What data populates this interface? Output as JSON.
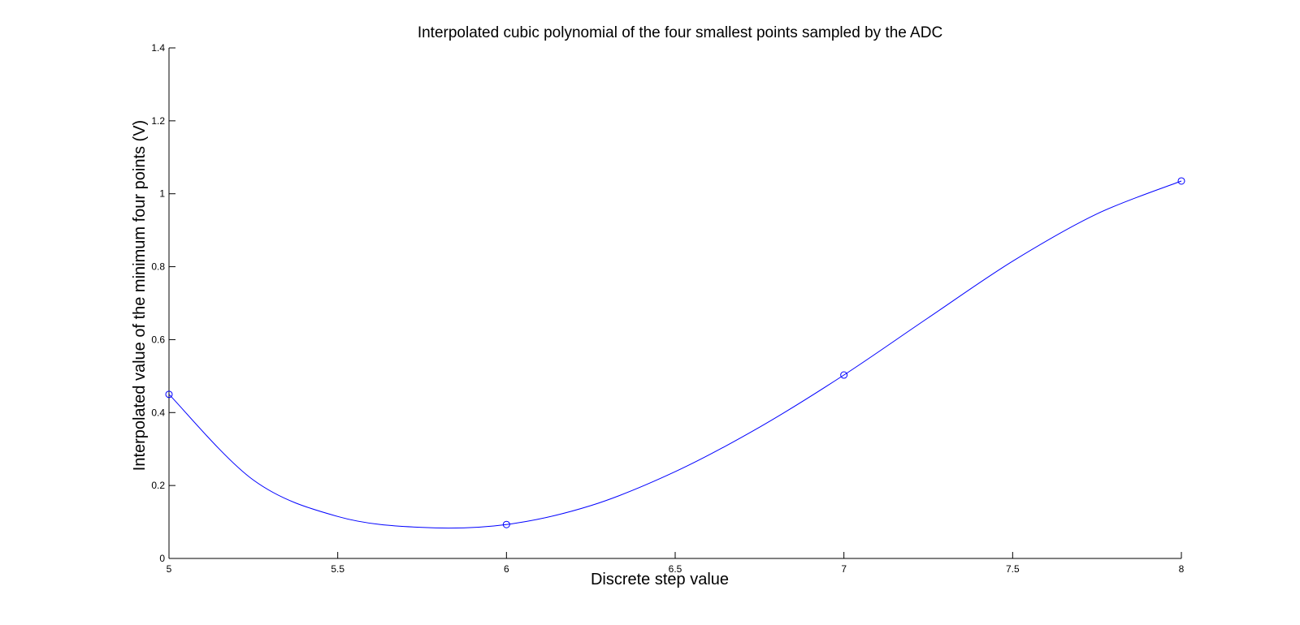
{
  "chart_data": {
    "type": "line",
    "title": "Interpolated cubic polynomial of the four smallest points sampled by the ADC",
    "xlabel": "Discrete step value",
    "ylabel": "Interpolated value of the minimum four points (V)",
    "xlim": [
      5,
      8
    ],
    "ylim": [
      0,
      1.4
    ],
    "xticks": [
      5,
      5.5,
      6,
      6.5,
      7,
      7.5,
      8
    ],
    "xtick_labels": [
      "5",
      "5.5",
      "6",
      "6.5",
      "7",
      "7.5",
      "8"
    ],
    "yticks": [
      0,
      0.2,
      0.4,
      0.6,
      0.8,
      1,
      1.2,
      1.4
    ],
    "ytick_labels": [
      "0",
      "0.2",
      "0.4",
      "0.6",
      "0.8",
      "1",
      "1.2",
      "1.4"
    ],
    "grid": false,
    "series": [
      {
        "style": "curve",
        "color": "#0000ff",
        "x": [
          5,
          5.25,
          5.5,
          5.75,
          6,
          6.25,
          6.5,
          6.75,
          7,
          7.25,
          7.5,
          7.75,
          8
        ],
        "y": [
          0.45,
          0.215,
          0.115,
          0.085,
          0.093,
          0.145,
          0.238,
          0.36,
          0.503,
          0.66,
          0.815,
          0.945,
          1.035
        ]
      },
      {
        "style": "markers",
        "marker": "circle",
        "color": "#0000ff",
        "x": [
          5,
          6,
          7,
          8
        ],
        "y": [
          0.45,
          0.093,
          0.503,
          1.035
        ]
      }
    ]
  }
}
